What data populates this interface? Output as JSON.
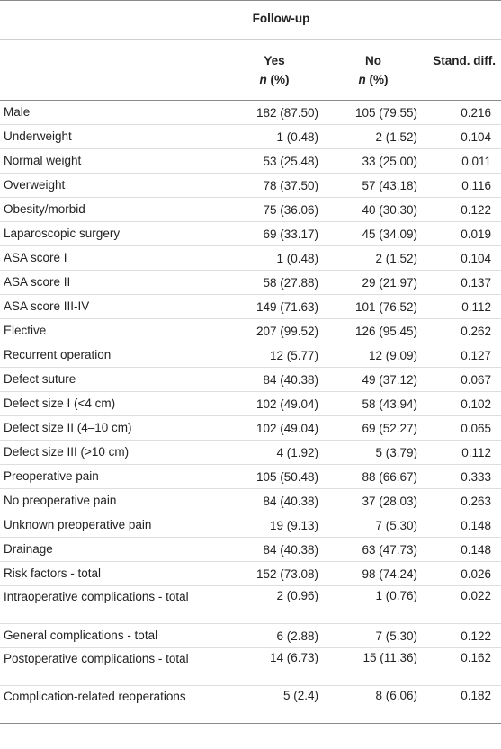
{
  "header": {
    "group_title": "Follow-up",
    "columns": [
      {
        "label": "Yes",
        "sub_n": "n",
        "sub_pct": " (%)"
      },
      {
        "label": "No",
        "sub_n": "n",
        "sub_pct": " (%)"
      },
      {
        "label": "Stand. diff.",
        "sub_n": "",
        "sub_pct": ""
      }
    ]
  },
  "rows": [
    {
      "label": "Male",
      "yes": "182 (87.50)",
      "no": "105 (79.55)",
      "diff": "0.216"
    },
    {
      "label": "Underweight",
      "yes": "1 (0.48)",
      "no": "2 (1.52)",
      "diff": "0.104"
    },
    {
      "label": "Normal weight",
      "yes": "53 (25.48)",
      "no": "33 (25.00)",
      "diff": "0.011"
    },
    {
      "label": "Overweight",
      "yes": "78 (37.50)",
      "no": "57 (43.18)",
      "diff": "0.116"
    },
    {
      "label": "Obesity/morbid",
      "yes": "75 (36.06)",
      "no": "40 (30.30)",
      "diff": "0.122"
    },
    {
      "label": "Laparoscopic surgery",
      "yes": "69 (33.17)",
      "no": "45 (34.09)",
      "diff": "0.019"
    },
    {
      "label": "ASA score I",
      "yes": "1 (0.48)",
      "no": "2 (1.52)",
      "diff": "0.104"
    },
    {
      "label": "ASA score II",
      "yes": "58 (27.88)",
      "no": "29 (21.97)",
      "diff": "0.137"
    },
    {
      "label": "ASA score III-IV",
      "yes": "149 (71.63)",
      "no": "101 (76.52)",
      "diff": "0.112"
    },
    {
      "label": "Elective",
      "yes": "207 (99.52)",
      "no": "126 (95.45)",
      "diff": "0.262"
    },
    {
      "label": "Recurrent operation",
      "yes": "12 (5.77)",
      "no": "12 (9.09)",
      "diff": "0.127"
    },
    {
      "label": "Defect suture",
      "yes": "84 (40.38)",
      "no": "49 (37.12)",
      "diff": "0.067"
    },
    {
      "label": "Defect size I (<4 cm)",
      "yes": "102 (49.04)",
      "no": "58 (43.94)",
      "diff": "0.102"
    },
    {
      "label": "Defect size II (4–10 cm)",
      "yes": "102 (49.04)",
      "no": "69 (52.27)",
      "diff": "0.065"
    },
    {
      "label": "Defect size III (>10 cm)",
      "yes": "4 (1.92)",
      "no": "5 (3.79)",
      "diff": "0.112"
    },
    {
      "label": "Preoperative pain",
      "yes": "105 (50.48)",
      "no": "88 (66.67)",
      "diff": "0.333"
    },
    {
      "label": "No preoperative pain",
      "yes": "84 (40.38)",
      "no": "37 (28.03)",
      "diff": "0.263"
    },
    {
      "label": "Unknown preoperative pain",
      "yes": "19 (9.13)",
      "no": "7 (5.30)",
      "diff": "0.148"
    },
    {
      "label": "Drainage",
      "yes": "84 (40.38)",
      "no": "63 (47.73)",
      "diff": "0.148"
    },
    {
      "label": "Risk factors - total",
      "yes": "152 (73.08)",
      "no": "98 (74.24)",
      "diff": "0.026"
    },
    {
      "label": "Intraoperative complications - total",
      "yes": "2 (0.96)",
      "no": "1 (0.76)",
      "diff": "0.022"
    },
    {
      "label": "General complications - total",
      "yes": "6 (2.88)",
      "no": "7 (5.30)",
      "diff": "0.122"
    },
    {
      "label": "Postoperative complications - total",
      "yes": "14 (6.73)",
      "no": "15 (11.36)",
      "diff": "0.162"
    },
    {
      "label": "Complication-related reoperations",
      "yes": "5 (2.4)",
      "no": "8 (6.06)",
      "diff": "0.182"
    }
  ]
}
